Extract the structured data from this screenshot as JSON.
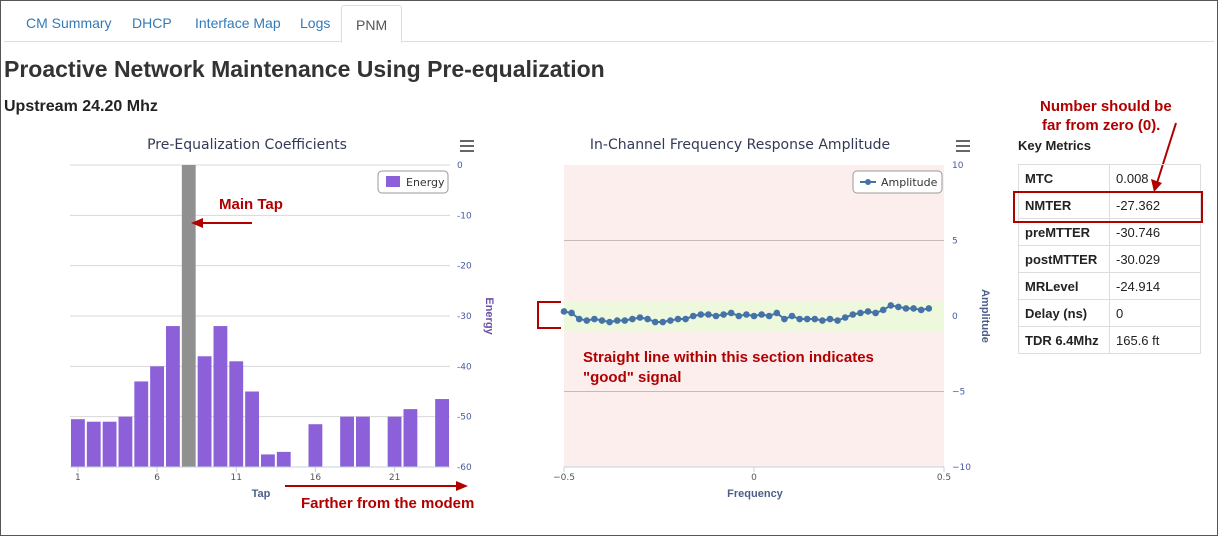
{
  "tabs": [
    {
      "label": "CM Summary",
      "active": false
    },
    {
      "label": "DHCP",
      "active": false
    },
    {
      "label": "Interface Map",
      "active": false
    },
    {
      "label": "Logs",
      "active": false
    },
    {
      "label": "PNM",
      "active": true
    }
  ],
  "page_title": "Proactive Network Maintenance Using Pre-equalization",
  "subtitle": "Upstream 24.20 Mhz",
  "colors": {
    "bar": "#8b60d8",
    "main_tap": "#909090",
    "line": "#4572a7",
    "annotation": "#b00000",
    "band": "#fdeeee",
    "good_band": "#eef8dd"
  },
  "chart_data": [
    {
      "type": "bar",
      "title": "Pre-Equalization Coefficients",
      "xlabel": "Tap",
      "ylabel": "Energy",
      "legend": "Energy",
      "legend_position": "top-right",
      "ylim": [
        -60,
        0
      ],
      "yticks": [
        0,
        -10,
        -20,
        -30,
        -40,
        -50,
        -60
      ],
      "xticks": [
        1,
        6,
        11,
        16,
        21
      ],
      "main_tap": 8,
      "taps": [
        1,
        2,
        3,
        4,
        5,
        6,
        7,
        8,
        9,
        10,
        11,
        12,
        13,
        14,
        15,
        16,
        17,
        18,
        19,
        20,
        21,
        22,
        23,
        24
      ],
      "values": [
        -50.5,
        -51,
        -51,
        -50,
        -43,
        -40,
        -32,
        0,
        -38,
        -32,
        -39,
        -45,
        -57.5,
        -57,
        null,
        -51.5,
        null,
        -50,
        -50,
        null,
        -50,
        -48.5,
        null,
        -46.5
      ]
    },
    {
      "type": "line",
      "title": "In-Channel Frequency Response Amplitude",
      "xlabel": "Frequency",
      "ylabel": "Amplitude",
      "legend": "Amplitude",
      "legend_position": "top-right",
      "xlim": [
        -0.5,
        0.5
      ],
      "ylim": [
        -10,
        10
      ],
      "xticks": [
        "−0.5",
        "0",
        "0.5"
      ],
      "yticks": [
        "10",
        "5",
        "0",
        "−5",
        "−10"
      ],
      "good_band": [
        -1,
        1
      ],
      "x": [
        -0.5,
        -0.48,
        -0.46,
        -0.44,
        -0.42,
        -0.4,
        -0.38,
        -0.36,
        -0.34,
        -0.32,
        -0.3,
        -0.28,
        -0.26,
        -0.24,
        -0.22,
        -0.2,
        -0.18,
        -0.16,
        -0.14,
        -0.12,
        -0.1,
        -0.08,
        -0.06,
        -0.04,
        -0.02,
        0.0,
        0.02,
        0.04,
        0.06,
        0.08,
        0.1,
        0.12,
        0.14,
        0.16,
        0.18,
        0.2,
        0.22,
        0.24,
        0.26,
        0.28,
        0.3,
        0.32,
        0.34,
        0.36,
        0.38,
        0.4,
        0.42,
        0.44,
        0.46
      ],
      "y": [
        0.3,
        0.2,
        -0.2,
        -0.3,
        -0.2,
        -0.3,
        -0.4,
        -0.3,
        -0.3,
        -0.2,
        -0.1,
        -0.2,
        -0.4,
        -0.4,
        -0.3,
        -0.2,
        -0.2,
        0.0,
        0.1,
        0.1,
        0.0,
        0.1,
        0.2,
        0.0,
        0.1,
        0.0,
        0.1,
        0.0,
        0.2,
        -0.2,
        0.0,
        -0.2,
        -0.2,
        -0.2,
        -0.3,
        -0.2,
        -0.3,
        -0.1,
        0.1,
        0.2,
        0.3,
        0.2,
        0.4,
        0.7,
        0.6,
        0.5,
        0.5,
        0.4,
        0.5
      ]
    }
  ],
  "annotations": {
    "main_tap": "Main Tap",
    "farther": "Farther from the modem",
    "straight_line_1": "Straight line within this section indicates",
    "straight_line_2": "\"good\" signal",
    "number_note_1": "Number should be",
    "number_note_2": "far from zero (0)."
  },
  "metrics": {
    "title": "Key Metrics",
    "rows": [
      {
        "key": "MTC",
        "value": "0.008"
      },
      {
        "key": "NMTER",
        "value": "-27.362"
      },
      {
        "key": "preMTTER",
        "value": "-30.746"
      },
      {
        "key": "postMTTER",
        "value": "-30.029"
      },
      {
        "key": "MRLevel",
        "value": "-24.914"
      },
      {
        "key": "Delay (ns)",
        "value": "0"
      },
      {
        "key": "TDR 6.4Mhz",
        "value": "165.6 ft"
      }
    ]
  },
  "menu_icons": [
    "hamburger-menu-icon",
    "hamburger-menu-icon"
  ]
}
